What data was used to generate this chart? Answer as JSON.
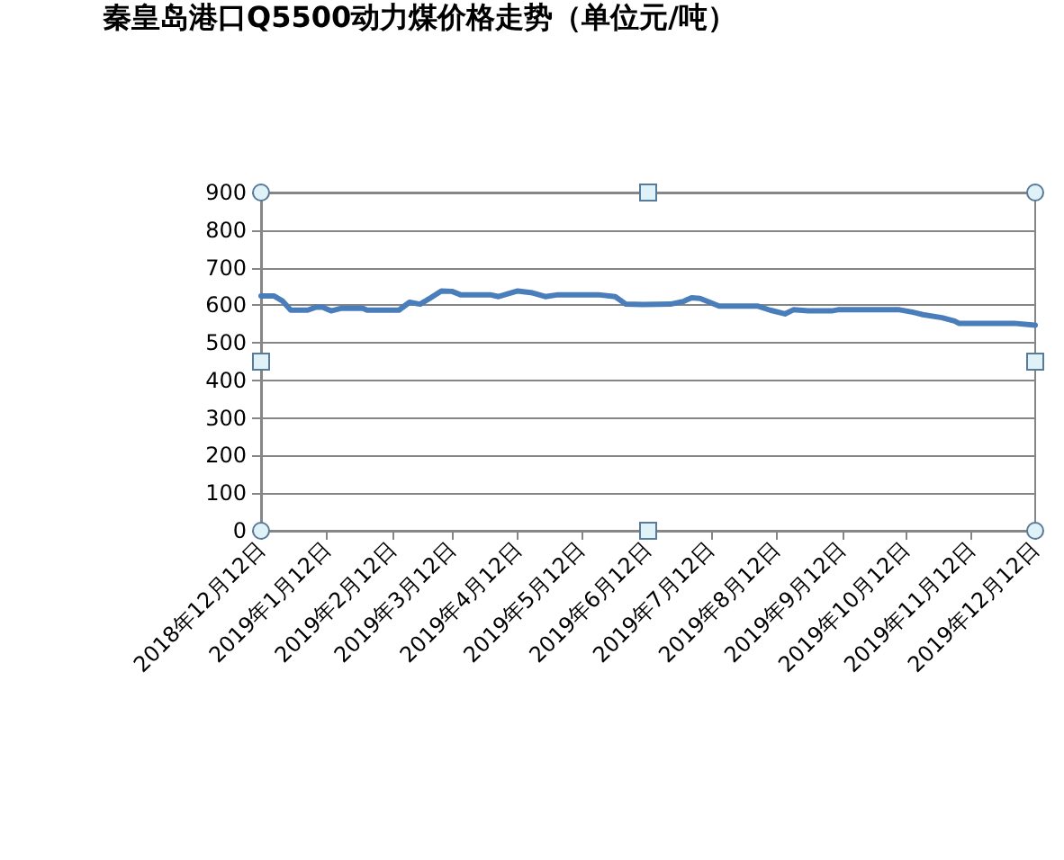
{
  "chart_data": {
    "type": "line",
    "title": "秦皇岛港口Q5500动力煤价格走势（单位元/吨）",
    "x": [
      "2018-12-12",
      "2018-12-18",
      "2018-12-22",
      "2018-12-26",
      "2019-01-03",
      "2019-01-07",
      "2019-01-10",
      "2019-01-14",
      "2019-01-19",
      "2019-01-29",
      "2019-01-31",
      "2019-02-15",
      "2019-02-20",
      "2019-02-25",
      "2019-03-02",
      "2019-03-07",
      "2019-03-12",
      "2019-03-16",
      "2019-03-30",
      "2019-04-03",
      "2019-04-12",
      "2019-04-19",
      "2019-04-25",
      "2019-05-01",
      "2019-05-20",
      "2019-05-28",
      "2019-06-02",
      "2019-06-10",
      "2019-06-23",
      "2019-06-29",
      "2019-07-03",
      "2019-07-07",
      "2019-07-16",
      "2019-08-03",
      "2019-08-09",
      "2019-08-16",
      "2019-08-20",
      "2019-08-27",
      "2019-09-07",
      "2019-09-10",
      "2019-10-09",
      "2019-10-15",
      "2019-10-20",
      "2019-10-29",
      "2019-11-04",
      "2019-11-06",
      "2019-12-02",
      "2019-12-12"
    ],
    "series": [
      {
        "color": "#4a7ebb",
        "values": [
          625,
          625,
          612,
          587,
          587,
          595,
          595,
          585,
          592,
          592,
          587,
          587,
          608,
          603,
          620,
          638,
          637,
          628,
          628,
          623,
          638,
          633,
          623,
          628,
          628,
          623,
          603,
          602,
          603,
          610,
          620,
          618,
          598,
          598,
          587,
          577,
          588,
          585,
          585,
          588,
          588,
          582,
          575,
          567,
          558,
          552,
          552,
          547
        ]
      }
    ],
    "xlim": [
      "2018-12-12",
      "2019-12-12"
    ],
    "xticks": [
      {
        "value": "2018-12-12",
        "label": "2018年12月12日"
      },
      {
        "value": "2019-01-12",
        "label": "2019年1月12日"
      },
      {
        "value": "2019-02-12",
        "label": "2019年2月12日"
      },
      {
        "value": "2019-03-12",
        "label": "2019年3月12日"
      },
      {
        "value": "2019-04-12",
        "label": "2019年4月12日"
      },
      {
        "value": "2019-05-12",
        "label": "2019年5月12日"
      },
      {
        "value": "2019-06-12",
        "label": "2019年6月12日"
      },
      {
        "value": "2019-07-12",
        "label": "2019年7月12日"
      },
      {
        "value": "2019-08-12",
        "label": "2019年8月12日"
      },
      {
        "value": "2019-09-12",
        "label": "2019年9月12日"
      },
      {
        "value": "2019-10-12",
        "label": "2019年10月12日"
      },
      {
        "value": "2019-11-12",
        "label": "2019年11月12日"
      },
      {
        "value": "2019-12-12",
        "label": "2019年12月12日"
      }
    ],
    "ylim": [
      0,
      900
    ],
    "yticks": [
      0,
      100,
      200,
      300,
      400,
      500,
      600,
      700,
      800,
      900
    ],
    "grid": "y",
    "marker": "none",
    "line_style": "solid"
  }
}
